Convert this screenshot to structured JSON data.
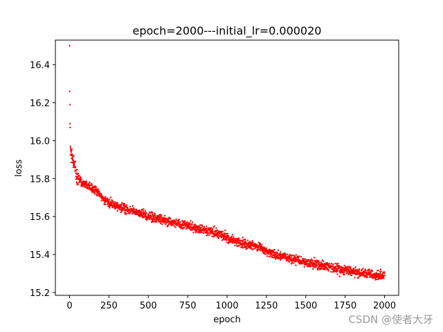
{
  "chart_data": {
    "type": "scatter",
    "title": "epoch=2000---initial_lr=0.000020",
    "xlabel": "epoch",
    "ylabel": "loss",
    "xlim": [
      -90,
      2090
    ],
    "ylim": [
      15.185,
      16.53
    ],
    "x_ticks": [
      0,
      250,
      500,
      750,
      1000,
      1250,
      1500,
      1750,
      2000
    ],
    "x_tick_labels": [
      "0",
      "250",
      "500",
      "750",
      "1000",
      "1250",
      "1500",
      "1750",
      "2000"
    ],
    "y_ticks": [
      15.2,
      15.4,
      15.6,
      15.8,
      16.0,
      16.2,
      16.4
    ],
    "y_tick_labels": [
      "15.2",
      "15.4",
      "15.6",
      "15.8",
      "16.0",
      "16.2",
      "16.4"
    ],
    "grid": false,
    "marker_color": "#ff0000",
    "series": [
      {
        "name": "",
        "sampling_note": "",
        "points": [
          [
            0,
            16.5
          ],
          [
            1,
            16.26
          ],
          [
            2,
            16.19
          ],
          [
            3,
            16.09
          ],
          [
            4,
            16.07
          ],
          [
            5,
            15.97
          ],
          [
            8,
            15.95
          ],
          [
            10,
            15.94
          ],
          [
            15,
            15.92
          ],
          [
            20,
            15.9
          ],
          [
            25,
            15.88
          ],
          [
            30,
            15.87
          ],
          [
            40,
            15.84
          ],
          [
            50,
            15.81
          ],
          [
            60,
            15.8
          ],
          [
            75,
            15.78
          ],
          [
            100,
            15.77
          ],
          [
            125,
            15.76
          ],
          [
            150,
            15.75
          ],
          [
            175,
            15.73
          ],
          [
            200,
            15.71
          ],
          [
            225,
            15.69
          ],
          [
            250,
            15.67
          ],
          [
            300,
            15.66
          ],
          [
            350,
            15.64
          ],
          [
            400,
            15.63
          ],
          [
            450,
            15.62
          ],
          [
            500,
            15.6
          ],
          [
            550,
            15.59
          ],
          [
            600,
            15.58
          ],
          [
            650,
            15.57
          ],
          [
            700,
            15.56
          ],
          [
            750,
            15.55
          ],
          [
            800,
            15.54
          ],
          [
            850,
            15.53
          ],
          [
            900,
            15.52
          ],
          [
            950,
            15.51
          ],
          [
            1000,
            15.49
          ],
          [
            1050,
            15.47
          ],
          [
            1100,
            15.46
          ],
          [
            1150,
            15.45
          ],
          [
            1200,
            15.44
          ],
          [
            1250,
            15.42
          ],
          [
            1300,
            15.4
          ],
          [
            1350,
            15.39
          ],
          [
            1400,
            15.38
          ],
          [
            1450,
            15.37
          ],
          [
            1500,
            15.36
          ],
          [
            1550,
            15.35
          ],
          [
            1600,
            15.34
          ],
          [
            1650,
            15.33
          ],
          [
            1700,
            15.32
          ],
          [
            1750,
            15.32
          ],
          [
            1800,
            15.31
          ],
          [
            1850,
            15.3
          ],
          [
            1900,
            15.3
          ],
          [
            1950,
            15.29
          ],
          [
            2000,
            15.29
          ]
        ]
      }
    ]
  },
  "watermark": "CSDN @使者大牙"
}
